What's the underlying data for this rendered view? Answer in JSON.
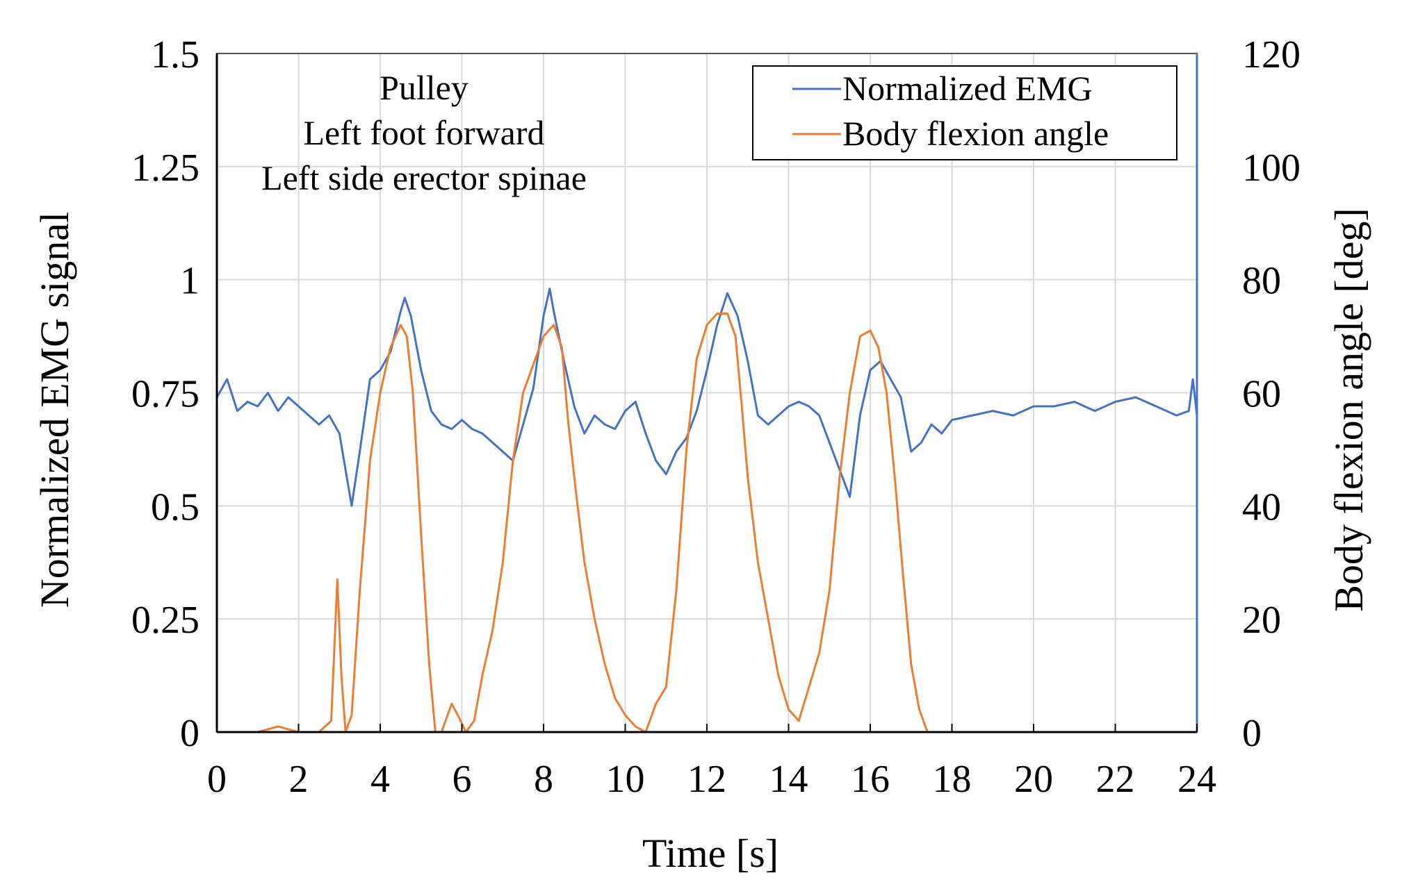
{
  "chart_data": {
    "type": "line",
    "annotation": [
      "Pulley",
      "Left foot forward",
      "Left side erector spinae"
    ],
    "xlabel": "Time [s]",
    "ylabel": "Normalized EMG signal",
    "y2label": "Body flexion angle [deg]",
    "xlim": [
      0,
      24
    ],
    "ylim": [
      0,
      1.5
    ],
    "y2lim": [
      0,
      120
    ],
    "xticks": [
      "0",
      "2",
      "4",
      "6",
      "8",
      "10",
      "12",
      "14",
      "16",
      "18",
      "20",
      "22",
      "24"
    ],
    "yticks": [
      "0",
      "0.25",
      "0.5",
      "0.75",
      "1",
      "1.25",
      "1.5"
    ],
    "y2ticks": [
      "0",
      "20",
      "40",
      "60",
      "80",
      "100",
      "120"
    ],
    "grid": true,
    "legend_position": "top-right",
    "colors": {
      "emg": "#4472c4",
      "angle": "#ed7d31",
      "grid": "#d9d9d9",
      "axis": "#000000"
    },
    "series": [
      {
        "name": "Normalized EMG",
        "axis": "left",
        "x": [
          0,
          0.25,
          0.5,
          0.75,
          1,
          1.25,
          1.5,
          1.75,
          2,
          2.25,
          2.5,
          2.75,
          3,
          3.15,
          3.3,
          3.5,
          3.75,
          4,
          4.25,
          4.5,
          4.6,
          4.75,
          5,
          5.25,
          5.5,
          5.75,
          6,
          6.25,
          6.5,
          6.75,
          7,
          7.25,
          7.5,
          7.75,
          8,
          8.15,
          8.25,
          8.5,
          8.75,
          9,
          9.25,
          9.5,
          9.75,
          10,
          10.25,
          10.5,
          10.75,
          11,
          11.25,
          11.5,
          11.75,
          12,
          12.25,
          12.5,
          12.75,
          13,
          13.25,
          13.5,
          13.75,
          14,
          14.25,
          14.5,
          14.75,
          15,
          15.25,
          15.5,
          15.75,
          16,
          16.25,
          16.5,
          16.75,
          17,
          17.25,
          17.5,
          17.75,
          18,
          18.5,
          19,
          19.5,
          20,
          20.5,
          21,
          21.5,
          22,
          22.5,
          23,
          23.5,
          23.8,
          23.9,
          24
        ],
        "values": [
          0.74,
          0.78,
          0.71,
          0.73,
          0.72,
          0.75,
          0.71,
          0.74,
          0.72,
          0.7,
          0.68,
          0.7,
          0.66,
          0.58,
          0.5,
          0.62,
          0.78,
          0.8,
          0.84,
          0.93,
          0.96,
          0.92,
          0.8,
          0.71,
          0.68,
          0.67,
          0.69,
          0.67,
          0.66,
          0.64,
          0.62,
          0.6,
          0.68,
          0.76,
          0.92,
          0.98,
          0.93,
          0.82,
          0.72,
          0.66,
          0.7,
          0.68,
          0.67,
          0.71,
          0.73,
          0.66,
          0.6,
          0.57,
          0.62,
          0.65,
          0.71,
          0.8,
          0.9,
          0.97,
          0.92,
          0.82,
          0.7,
          0.68,
          0.7,
          0.72,
          0.73,
          0.72,
          0.7,
          0.64,
          0.58,
          0.52,
          0.7,
          0.8,
          0.82,
          0.78,
          0.74,
          0.62,
          0.64,
          0.68,
          0.66,
          0.69,
          0.7,
          0.71,
          0.7,
          0.72,
          0.72,
          0.73,
          0.71,
          0.73,
          0.74,
          0.72,
          0.7,
          0.71,
          0.78,
          0.7
        ]
      },
      {
        "name": "Body flexion angle",
        "axis": "right",
        "x": [
          0,
          0.5,
          1,
          1.5,
          2,
          2.5,
          2.8,
          2.95,
          3.05,
          3.15,
          3.3,
          3.5,
          3.75,
          4,
          4.25,
          4.5,
          4.65,
          4.8,
          5.0,
          5.2,
          5.35,
          5.5,
          5.75,
          5.9,
          6.1,
          6.3,
          6.5,
          6.75,
          7,
          7.25,
          7.5,
          7.75,
          8,
          8.25,
          8.45,
          8.6,
          8.8,
          9,
          9.25,
          9.5,
          9.75,
          10,
          10.25,
          10.5,
          10.75,
          11,
          11.25,
          11.5,
          11.75,
          12,
          12.25,
          12.5,
          12.7,
          12.85,
          13,
          13.25,
          13.5,
          13.75,
          14,
          14.25,
          14.5,
          14.75,
          15,
          15.25,
          15.5,
          15.75,
          16,
          16.2,
          16.4,
          16.6,
          16.8,
          17,
          17.2,
          17.4
        ],
        "values": [
          0,
          0,
          0,
          1,
          0,
          0,
          2,
          27,
          10,
          0,
          3,
          25,
          48,
          60,
          68,
          72,
          70,
          60,
          35,
          12,
          0,
          0,
          5,
          3,
          0,
          2,
          10,
          18,
          30,
          48,
          60,
          65,
          70,
          72,
          68,
          55,
          42,
          30,
          20,
          12,
          6,
          3,
          1,
          0,
          5,
          8,
          25,
          50,
          66,
          72,
          74,
          74,
          70,
          58,
          45,
          30,
          20,
          10,
          4,
          2,
          8,
          14,
          25,
          45,
          60,
          70,
          71,
          68,
          60,
          45,
          28,
          12,
          4,
          0
        ]
      }
    ]
  }
}
